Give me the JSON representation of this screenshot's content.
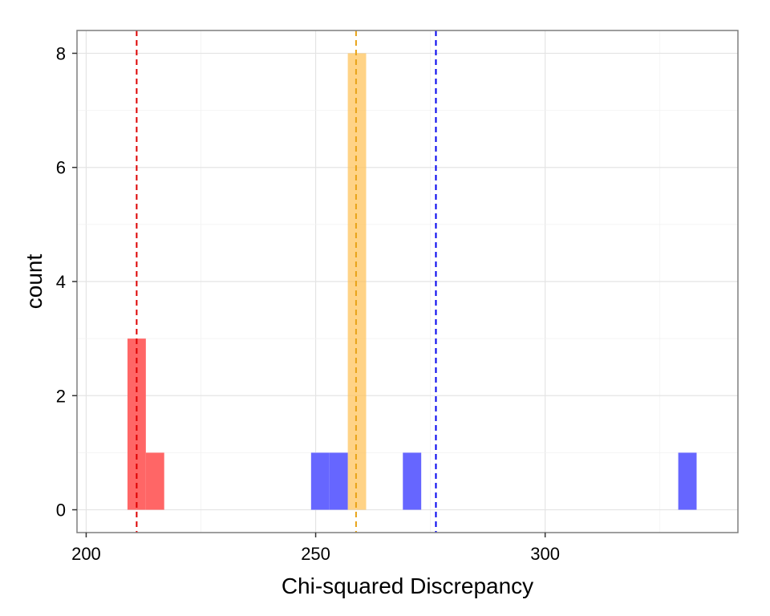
{
  "chart_data": {
    "type": "bar",
    "title": "",
    "xlabel": "Chi-squared Discrepancy",
    "ylabel": "count",
    "xlim": [
      198,
      342
    ],
    "ylim": [
      -0.4,
      8.4
    ],
    "x_ticks": [
      200,
      250,
      300
    ],
    "y_ticks": [
      0,
      2,
      4,
      6,
      8
    ],
    "grid": true,
    "legend": "none",
    "series": [
      {
        "color": "#FF6666",
        "bins": [
          {
            "x0": 209,
            "x1": 213,
            "count": 3
          },
          {
            "x0": 213,
            "x1": 217,
            "count": 1
          }
        ],
        "reference_line": 211
      },
      {
        "color": "#FFC45E",
        "bins": [
          {
            "x0": 257,
            "x1": 261,
            "count": 8
          }
        ],
        "reference_line": 258.8
      },
      {
        "color": "#6666FF",
        "bins": [
          {
            "x0": 249,
            "x1": 253,
            "count": 1
          },
          {
            "x0": 253,
            "x1": 257,
            "count": 1
          },
          {
            "x0": 269,
            "x1": 273,
            "count": 1
          },
          {
            "x0": 329,
            "x1": 333,
            "count": 1
          }
        ],
        "reference_line": 276.2
      }
    ],
    "reference_line_colors": [
      "#DD0000",
      "#E8A317",
      "#0000EE"
    ]
  }
}
